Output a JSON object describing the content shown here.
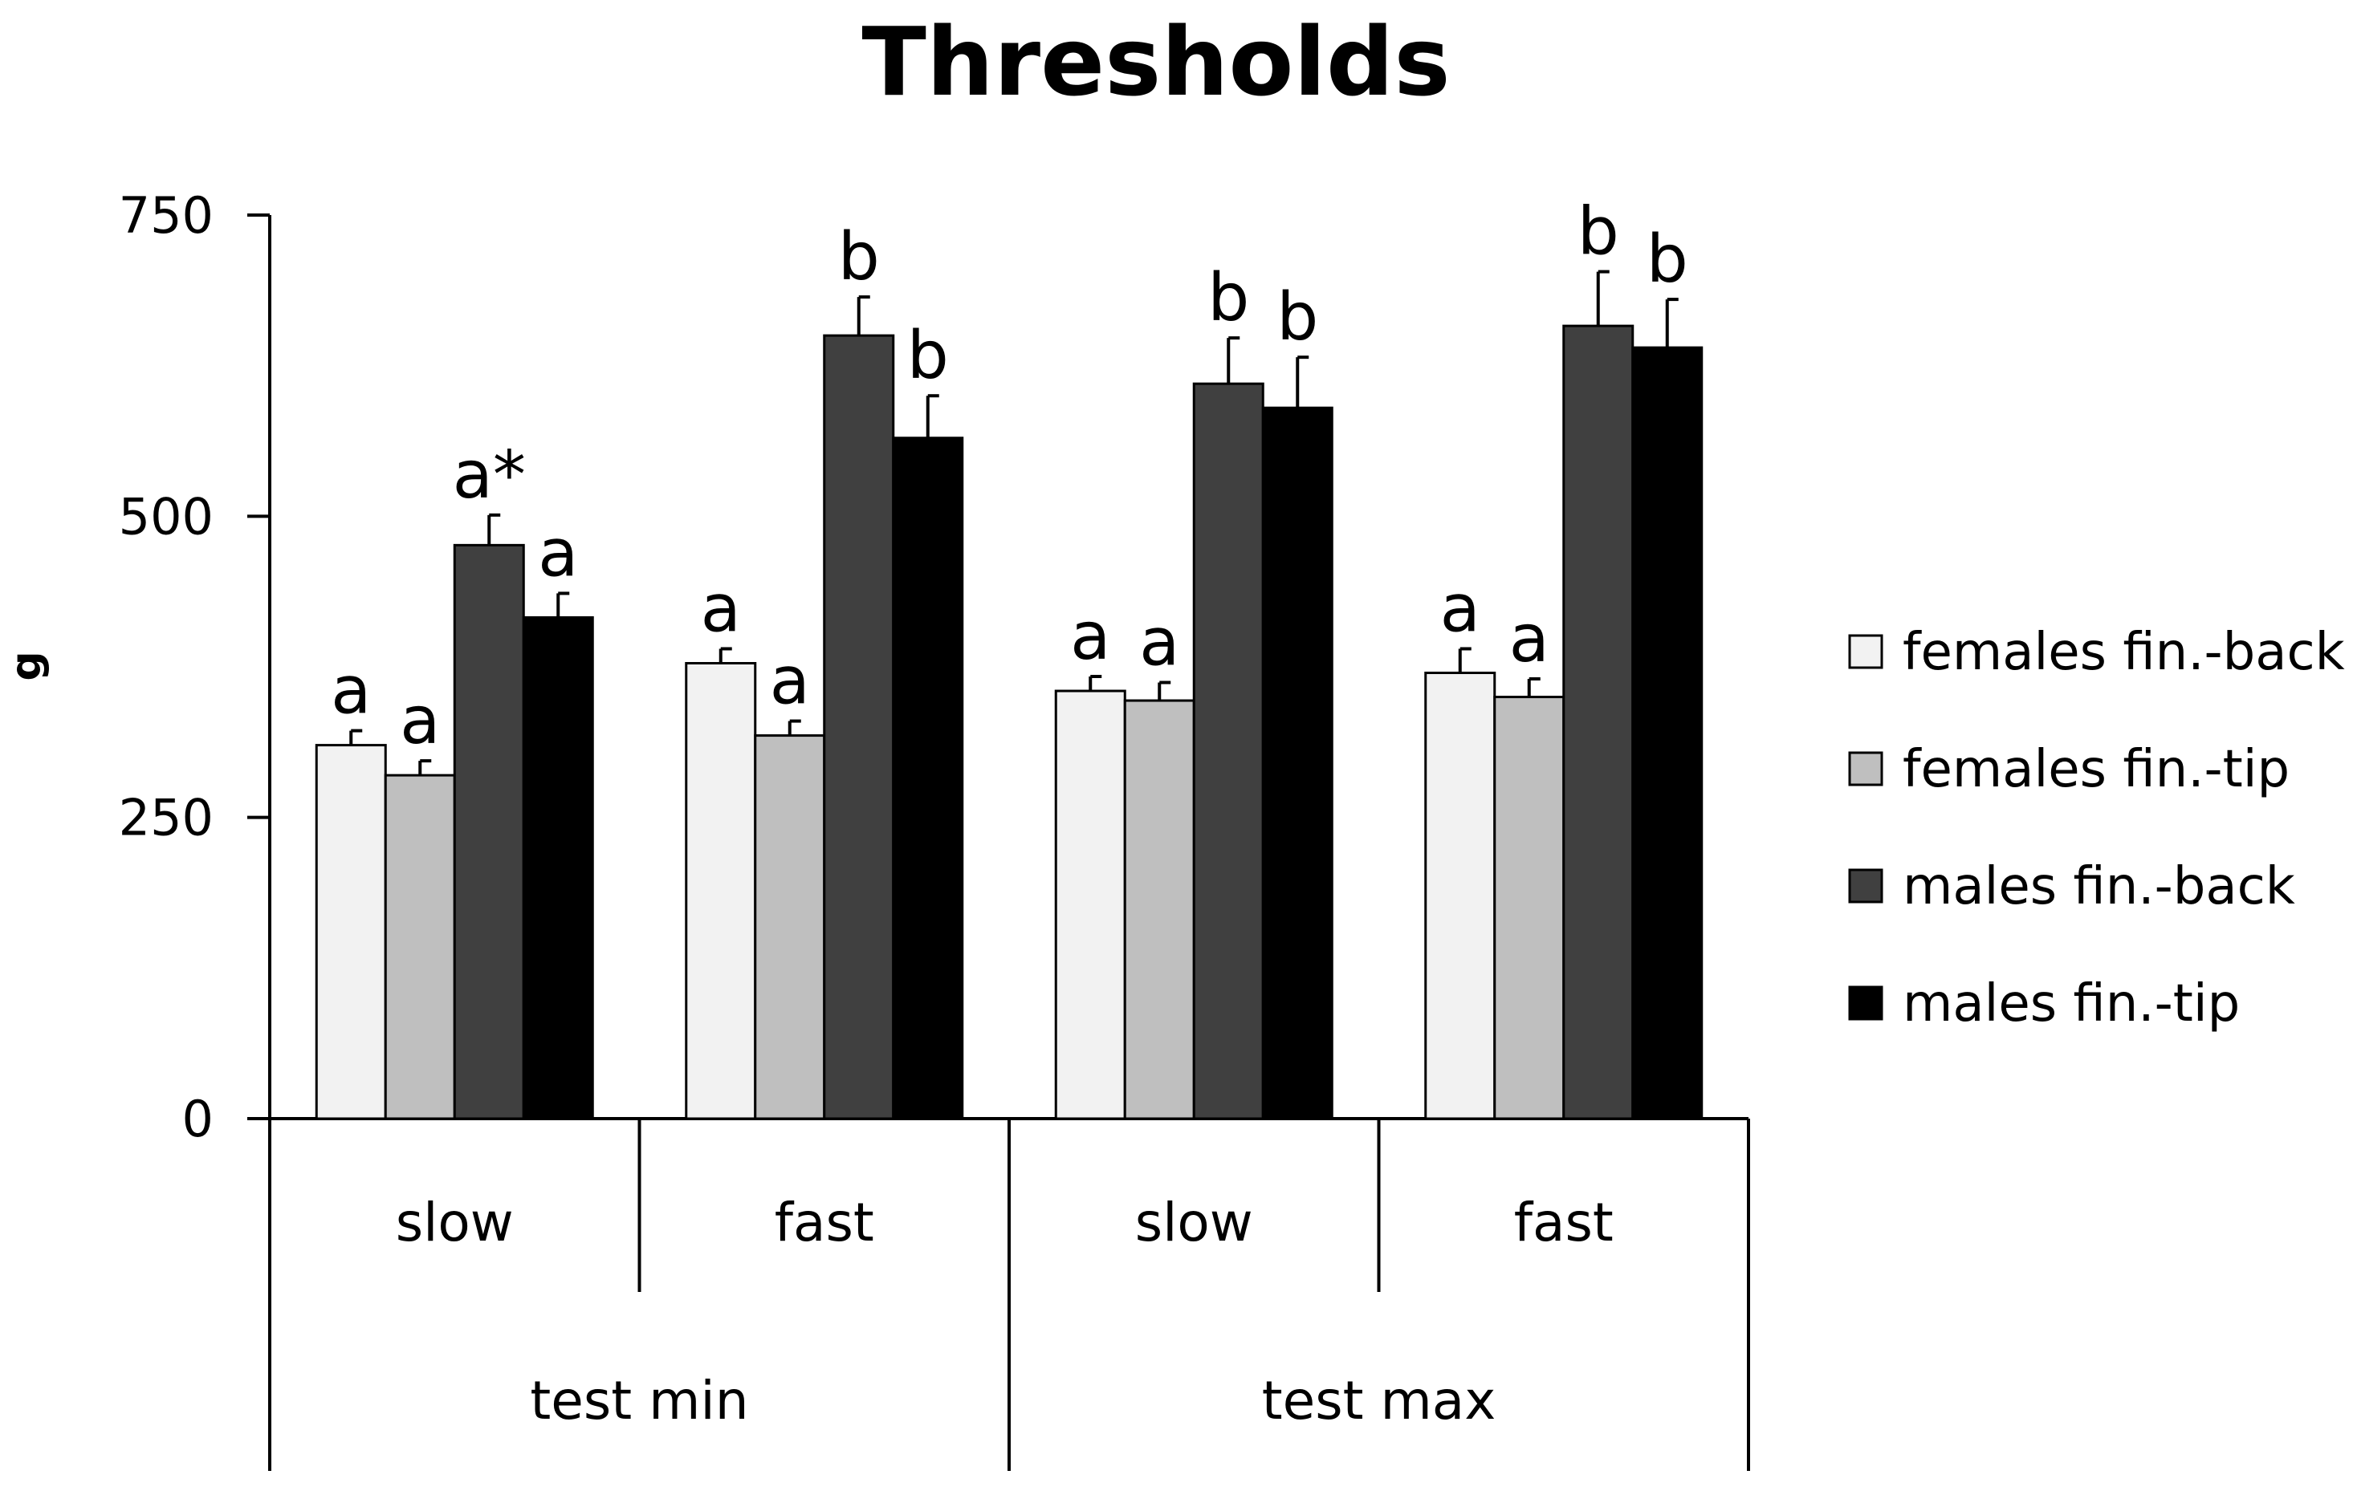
{
  "chart_data": {
    "type": "bar",
    "title": "Thresholds",
    "ylabel": "g",
    "xlabel": "",
    "ylim": [
      0,
      750
    ],
    "yticks": [
      0,
      250,
      500,
      750
    ],
    "groups": [
      {
        "label": "test min",
        "subgroups": [
          "slow",
          "fast"
        ]
      },
      {
        "label": "test max",
        "subgroups": [
          "slow",
          "fast"
        ]
      }
    ],
    "categories": [
      "slow",
      "fast",
      "slow",
      "fast"
    ],
    "series": [
      {
        "name": "females fin.-back",
        "color": "#f2f2f2",
        "values": [
          310,
          378,
          355,
          370
        ],
        "errors": [
          12,
          12,
          12,
          20
        ],
        "letters": [
          "a",
          "a",
          "a",
          "a"
        ]
      },
      {
        "name": "females fin.-tip",
        "color": "#bfbfbf",
        "values": [
          285,
          318,
          347,
          350
        ],
        "errors": [
          12,
          12,
          15,
          15
        ],
        "letters": [
          "a",
          "a",
          "a",
          "a"
        ]
      },
      {
        "name": "males fin.-back",
        "color": "#404040",
        "values": [
          476,
          650,
          610,
          658
        ],
        "errors": [
          25,
          32,
          38,
          45
        ],
        "letters": [
          "a*",
          "b",
          "b",
          "b"
        ]
      },
      {
        "name": "males fin.-tip",
        "color": "#000000",
        "values": [
          416,
          565,
          590,
          640
        ],
        "errors": [
          20,
          35,
          42,
          40
        ],
        "letters": [
          "a",
          "b",
          "b",
          "b"
        ]
      }
    ],
    "legend_position": "right",
    "grid": false
  }
}
